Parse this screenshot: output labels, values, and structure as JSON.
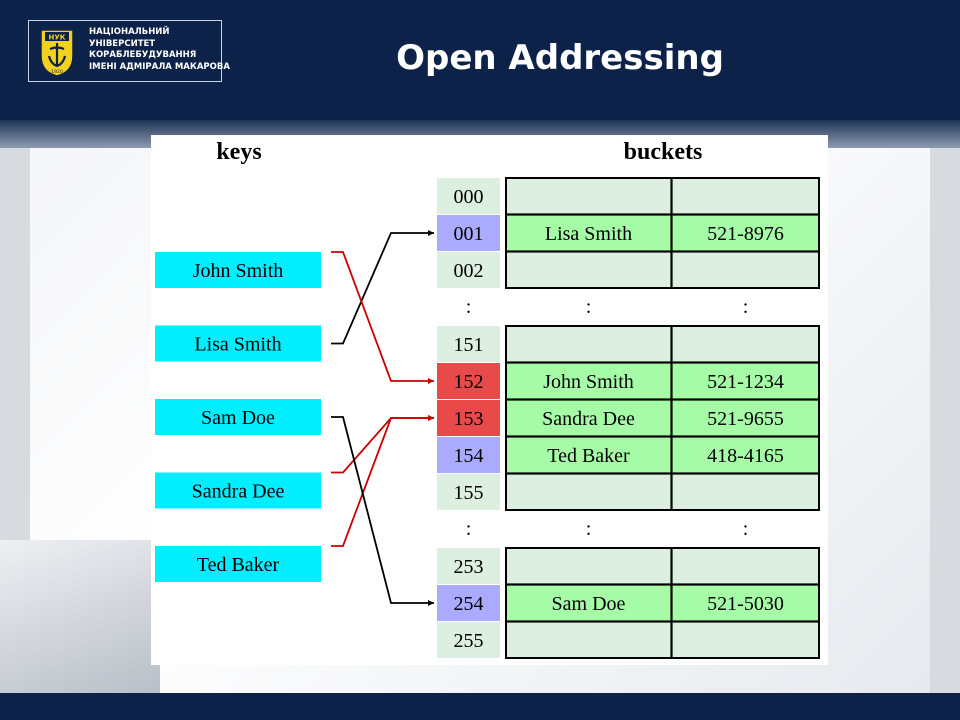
{
  "header": {
    "university_logo_text": "НАЦІОНАЛЬНИЙ\nУНІВЕРСИТЕТ\nКОРАБЛЕБУДУВАННЯ\nІМЕНІ АДМІРАЛА МАКАРОВА",
    "emblem_text": "НУК",
    "emblem_year": "1920",
    "title": "Open Addressing"
  },
  "diagram": {
    "keys_heading": "keys",
    "buckets_heading": "buckets",
    "keys": [
      "John Smith",
      "Lisa Smith",
      "Sam Doe",
      "Sandra Dee",
      "Ted Baker"
    ],
    "ellipsis": ":",
    "rows": [
      {
        "index": "000",
        "name": "",
        "phone": "",
        "state": "empty"
      },
      {
        "index": "001",
        "name": "Lisa Smith",
        "phone": "521-8976",
        "state": "home"
      },
      {
        "index": "002",
        "name": "",
        "phone": "",
        "state": "empty"
      },
      {
        "index": "151",
        "name": "",
        "phone": "",
        "state": "empty"
      },
      {
        "index": "152",
        "name": "John Smith",
        "phone": "521-1234",
        "state": "collision"
      },
      {
        "index": "153",
        "name": "Sandra Dee",
        "phone": "521-9655",
        "state": "collision"
      },
      {
        "index": "154",
        "name": "Ted Baker",
        "phone": "418-4165",
        "state": "home"
      },
      {
        "index": "155",
        "name": "",
        "phone": "",
        "state": "empty"
      },
      {
        "index": "253",
        "name": "",
        "phone": "",
        "state": "empty"
      },
      {
        "index": "254",
        "name": "Sam Doe",
        "phone": "521-5030",
        "state": "home"
      },
      {
        "index": "255",
        "name": "",
        "phone": "",
        "state": "empty"
      }
    ],
    "arrows": [
      {
        "from": "Lisa Smith",
        "to": "001",
        "color": "black"
      },
      {
        "from": "John Smith",
        "to": "152",
        "color": "red"
      },
      {
        "from": "Sandra Dee",
        "to": "153",
        "color": "red"
      },
      {
        "from": "Ted Baker",
        "to": "153",
        "color": "red"
      },
      {
        "from": "Sam Doe",
        "to": "254",
        "color": "black"
      }
    ],
    "colors": {
      "key_box": "#00eeff",
      "index_normal": "#dcefe0",
      "index_home": "#aaaaff",
      "index_collision": "#e84a4a",
      "filled_cell": "#a6fba6",
      "empty_cell": "#dcefe0",
      "red_arrow": "#cc0000",
      "black_arrow": "#000000"
    }
  }
}
